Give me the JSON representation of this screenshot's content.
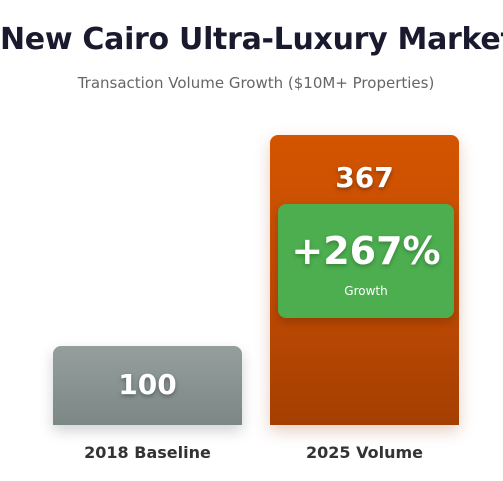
{
  "chart_data": {
    "type": "bar",
    "title": "New Cairo Ultra-Luxury Market",
    "subtitle": "Transaction Volume Growth ($10M+ Properties)",
    "categories": [
      "2018 Baseline",
      "2025 Volume"
    ],
    "values": [
      100,
      367
    ],
    "ylim": [
      0,
      367
    ],
    "grid": false,
    "annotation": {
      "value": "+267%",
      "label": "Growth"
    },
    "colors": {
      "baseline": "#8a9391",
      "volume": "#c44d02",
      "growth_box": "#4cae4f"
    }
  }
}
